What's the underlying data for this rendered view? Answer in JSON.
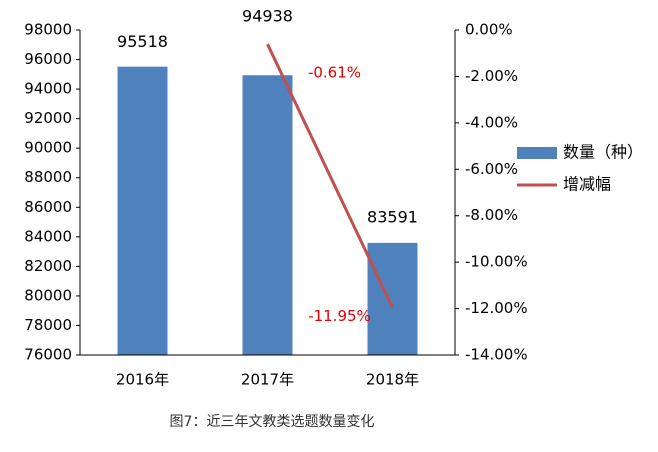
{
  "chart_data": {
    "type": "combo",
    "caption": "图7：近三年文教类选题数量变化",
    "categories": [
      "2016年",
      "2017年",
      "2018年"
    ],
    "series": [
      {
        "name": "数量（种）",
        "type": "bar",
        "color": "#4f81bd",
        "values": [
          95518,
          94938,
          83591
        ]
      },
      {
        "name": "增减幅",
        "type": "line",
        "axis": "y2",
        "color": "#c0504d",
        "values": [
          null,
          -0.61,
          -11.95
        ],
        "value_labels": [
          null,
          "-0.61%",
          "-11.95%"
        ]
      }
    ],
    "ylim": [
      76000,
      98000
    ],
    "yticks": [
      76000,
      78000,
      80000,
      82000,
      84000,
      86000,
      88000,
      90000,
      92000,
      94000,
      96000,
      98000
    ],
    "y2lim": [
      -14,
      0
    ],
    "y2ticks": [
      {
        "value": -14,
        "label": "-14.00%"
      },
      {
        "value": -12,
        "label": "-12.00%"
      },
      {
        "value": -10,
        "label": "-10.00%"
      },
      {
        "value": -8,
        "label": "-8.00%"
      },
      {
        "value": -6,
        "label": "-6.00%"
      },
      {
        "value": -4,
        "label": "-4.00%"
      },
      {
        "value": -2,
        "label": "-2.00%"
      },
      {
        "value": 0,
        "label": "0.00%"
      }
    ],
    "legend": "right",
    "grid": false
  }
}
